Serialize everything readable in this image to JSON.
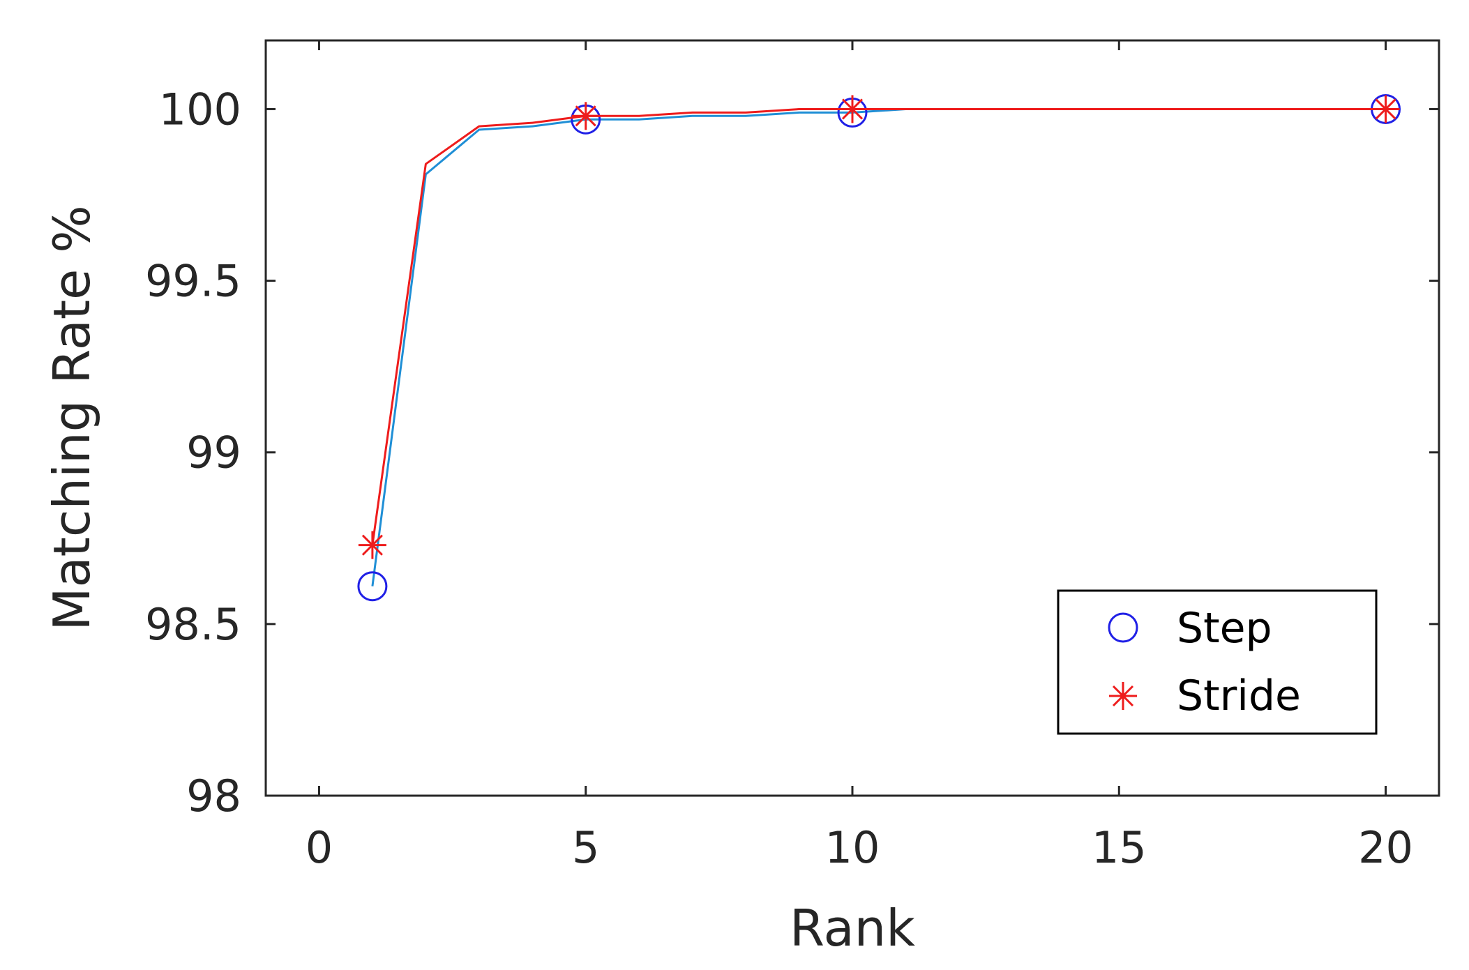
{
  "chart_data": {
    "type": "line",
    "xlabel": "Rank",
    "ylabel": "Matching Rate %",
    "xlim": [
      -1,
      21
    ],
    "ylim": [
      98,
      100.2
    ],
    "xticks": [
      0,
      5,
      10,
      15,
      20
    ],
    "yticks": [
      98,
      98.5,
      99,
      99.5,
      100
    ],
    "xtick_labels": [
      "0",
      "5",
      "10",
      "15",
      "20"
    ],
    "ytick_labels": [
      "98",
      "98.5",
      "99",
      "99.5",
      "100"
    ],
    "grid": false,
    "legend_position": "bottom-right",
    "series": [
      {
        "name": "Step",
        "line_color": "#1f8fd6",
        "marker": "circle",
        "marker_color": "#2020e6",
        "x": [
          1,
          2,
          3,
          4,
          5,
          6,
          7,
          8,
          9,
          10,
          11,
          12,
          13,
          14,
          15,
          16,
          17,
          18,
          19,
          20
        ],
        "y": [
          98.61,
          99.81,
          99.94,
          99.95,
          99.97,
          99.97,
          99.98,
          99.98,
          99.99,
          99.99,
          100,
          100,
          100,
          100,
          100,
          100,
          100,
          100,
          100,
          100
        ],
        "marker_x": [
          1,
          5,
          10,
          20
        ],
        "marker_y": [
          98.61,
          99.97,
          99.99,
          100
        ]
      },
      {
        "name": "Stride",
        "line_color": "#ee1c1c",
        "marker": "asterisk",
        "marker_color": "#ee1c1c",
        "x": [
          1,
          2,
          3,
          4,
          5,
          6,
          7,
          8,
          9,
          10,
          11,
          12,
          13,
          14,
          15,
          16,
          17,
          18,
          19,
          20
        ],
        "y": [
          98.73,
          99.84,
          99.95,
          99.96,
          99.98,
          99.98,
          99.99,
          99.99,
          100,
          100,
          100,
          100,
          100,
          100,
          100,
          100,
          100,
          100,
          100,
          100
        ],
        "marker_x": [
          1,
          5,
          10,
          20
        ],
        "marker_y": [
          98.73,
          99.98,
          100,
          100
        ]
      }
    ]
  }
}
